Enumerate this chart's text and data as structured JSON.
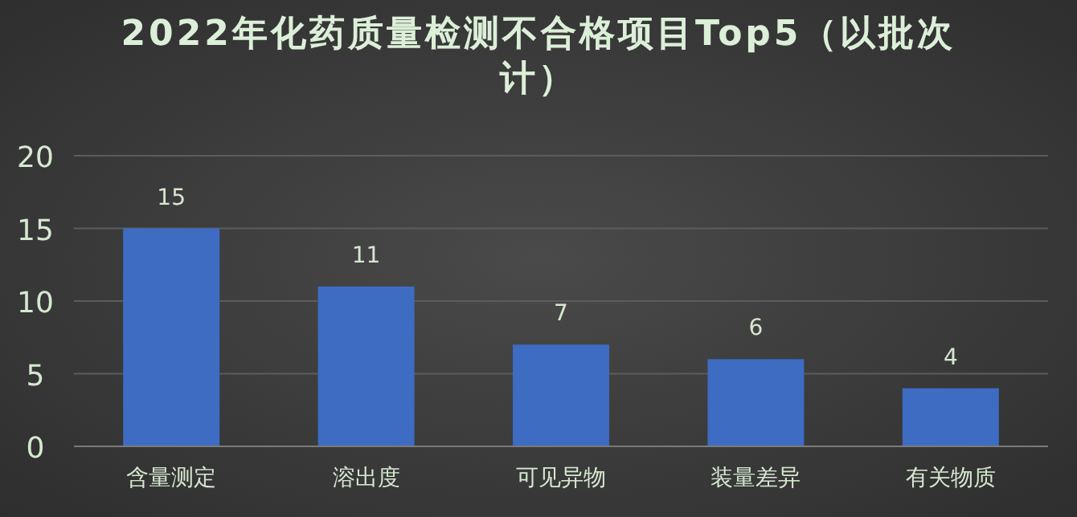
{
  "chart_data": {
    "type": "bar",
    "title": "2022年化药质量检测不合格项目Top5（以批次计）",
    "categories": [
      "含量测定",
      "溶出度",
      "可见异物",
      "装量差异",
      "有关物质"
    ],
    "values": [
      15,
      11,
      7,
      6,
      4
    ],
    "color": "#3d6cc2",
    "ylim": [
      0,
      20
    ],
    "yticks": [
      0,
      5,
      10,
      15,
      20
    ],
    "grid": "y",
    "data_labels": true
  }
}
